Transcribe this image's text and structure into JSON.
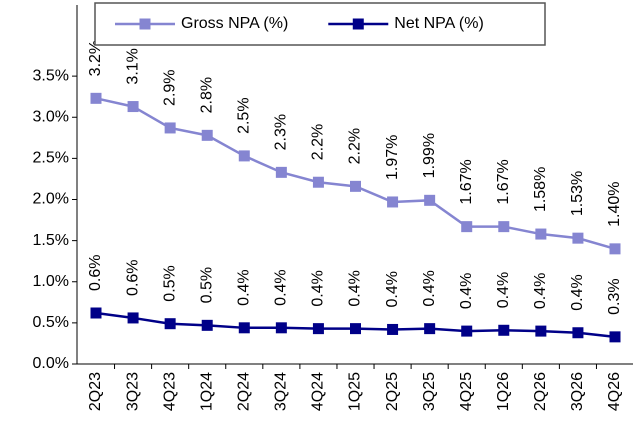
{
  "chart_data": {
    "type": "line",
    "categories": [
      "2Q23",
      "3Q23",
      "4Q23",
      "1Q24",
      "2Q24",
      "3Q24",
      "4Q24",
      "1Q25",
      "2Q25",
      "3Q25",
      "4Q25",
      "1Q26",
      "2Q26",
      "3Q26",
      "4Q26"
    ],
    "series": [
      {
        "name": "Gross NPA (%)",
        "color": "#8585d1",
        "values": [
          3.23,
          3.13,
          2.87,
          2.78,
          2.53,
          2.33,
          2.21,
          2.16,
          1.97,
          1.99,
          1.67,
          1.67,
          1.58,
          1.53,
          1.4
        ],
        "value_labels": [
          "3.2%",
          "3.1%",
          "2.9%",
          "2.8%",
          "2.5%",
          "2.3%",
          "2.2%",
          "2.2%",
          "1.97%",
          "1.99%",
          "1.67%",
          "1.67%",
          "1.58%",
          "1.53%",
          "1.40%"
        ]
      },
      {
        "name": "Net NPA (%)",
        "color": "#000088",
        "values": [
          0.62,
          0.56,
          0.49,
          0.47,
          0.44,
          0.44,
          0.43,
          0.43,
          0.42,
          0.43,
          0.4,
          0.41,
          0.4,
          0.38,
          0.33
        ],
        "value_labels": [
          "0.6%",
          "0.6%",
          "0.5%",
          "0.5%",
          "0.4%",
          "0.4%",
          "0.4%",
          "0.4%",
          "0.4%",
          "0.4%",
          "0.4%",
          "0.4%",
          "0.4%",
          "0.4%",
          "0.3%"
        ]
      }
    ],
    "ylim": [
      0,
      4
    ],
    "yticks": [
      {
        "value": 0,
        "label": "0.0%"
      },
      {
        "value": 0.5,
        "label": "0.5%"
      },
      {
        "value": 1,
        "label": "1.0%"
      },
      {
        "value": 1.5,
        "label": "1.5%"
      },
      {
        "value": 2,
        "label": "2.0%"
      },
      {
        "value": 2.5,
        "label": "2.5%"
      },
      {
        "value": 3,
        "label": "3.0%"
      },
      {
        "value": 3.5,
        "label": "3.5%"
      }
    ],
    "legend": "top"
  }
}
